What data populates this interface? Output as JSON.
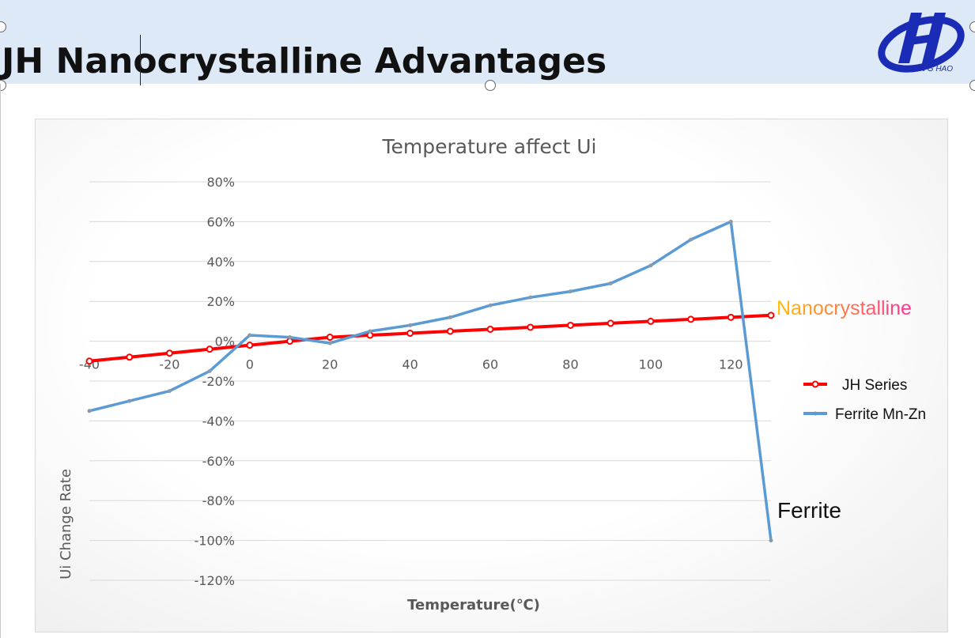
{
  "slide": {
    "title": "JH Nanocrystalline Advantages",
    "logo_text": "JIN G HAO"
  },
  "colors": {
    "header_bg": "#dde9f6",
    "logo_blue": "#1a2bb5",
    "jh_series": "#ff0000",
    "ferrite": "#5b9bd5",
    "grid": "#d9d9d9",
    "tick_text": "#595959",
    "nano_gradient": [
      "#ffc000",
      "#ff3399"
    ]
  },
  "chart_data": {
    "type": "line",
    "title": "Temperature affect Ui",
    "xlabel": "Temperature(℃)",
    "ylabel": "Ui  Change Rate",
    "x": [
      -40,
      -30,
      -20,
      -10,
      0,
      10,
      20,
      30,
      40,
      50,
      60,
      70,
      80,
      90,
      100,
      110,
      120,
      130
    ],
    "xticks": [
      "-40",
      "-20",
      "0",
      "20",
      "40",
      "60",
      "80",
      "100",
      "120"
    ],
    "xtick_values": [
      -40,
      -20,
      0,
      20,
      40,
      60,
      80,
      100,
      120
    ],
    "xlim": [
      -40,
      130
    ],
    "yticks": [
      "80%",
      "60%",
      "40%",
      "20%",
      "0%",
      "-20%",
      "-40%",
      "-60%",
      "-80%",
      "-100%",
      "-120%"
    ],
    "ytick_values": [
      80,
      60,
      40,
      20,
      0,
      -20,
      -40,
      -60,
      -80,
      -100,
      -120
    ],
    "ylim": [
      -120,
      80
    ],
    "grid": true,
    "legend": "right",
    "series": [
      {
        "name": "JH Series",
        "color": "#ff0000",
        "marker": "circle",
        "values": [
          -10,
          -8,
          -6,
          -4,
          -2,
          0,
          2,
          3,
          4,
          5,
          6,
          7,
          8,
          9,
          10,
          11,
          12,
          13
        ]
      },
      {
        "name": "Ferrite Mn-Zn",
        "color": "#5b9bd5",
        "marker": "dot",
        "values": [
          -35,
          -30,
          -25,
          -15,
          3,
          2,
          -1,
          5,
          8,
          12,
          18,
          22,
          25,
          29,
          38,
          51,
          60,
          -100
        ]
      }
    ],
    "annotations": [
      {
        "text": "Nanocrystalline",
        "x": 130,
        "y": 17
      },
      {
        "text": "Ferrite",
        "x": 130,
        "y": -85
      }
    ]
  }
}
